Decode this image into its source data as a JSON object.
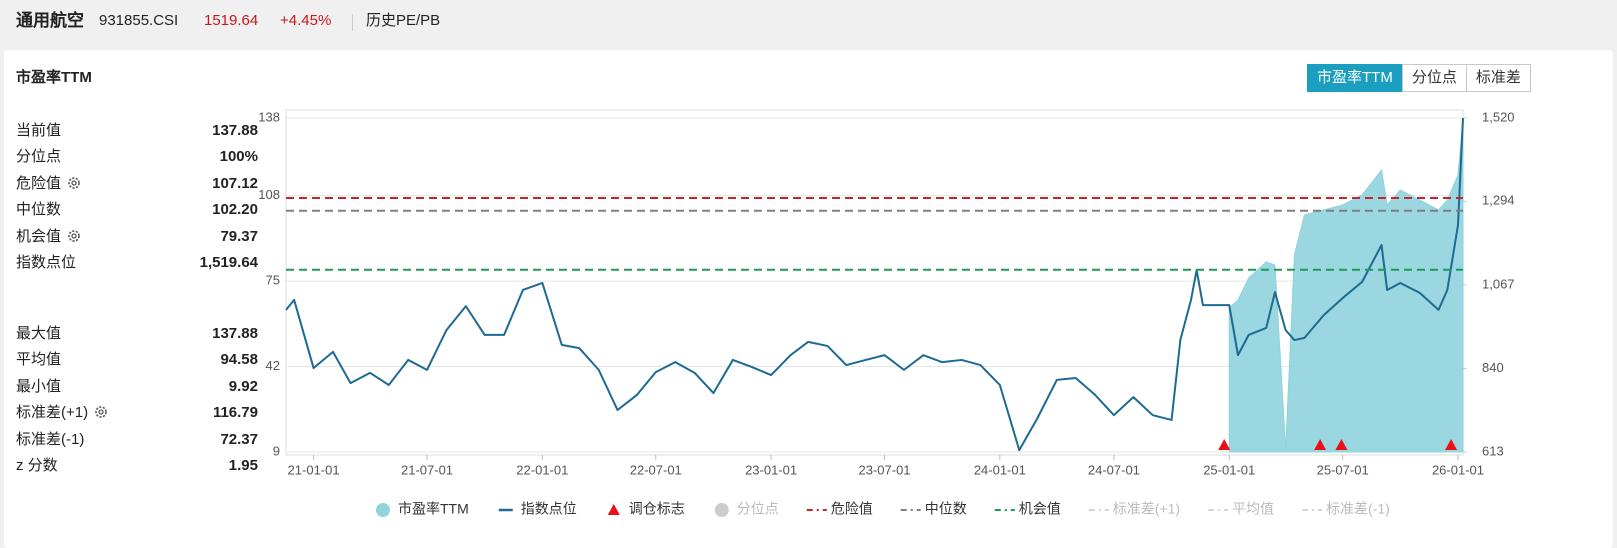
{
  "header": {
    "title": "通用航空",
    "code": "931855.CSI",
    "price": "1519.64",
    "change": "+4.45%",
    "tab": "历史PE/PB"
  },
  "panel": {
    "title": "市盈率TTM",
    "buttons": [
      {
        "label": "市盈率TTM",
        "active": true
      },
      {
        "label": "分位点",
        "active": false
      },
      {
        "label": "标准差",
        "active": false
      }
    ]
  },
  "stats": [
    [
      {
        "label": "当前值",
        "value": "137.88",
        "settings": false
      },
      {
        "label": "分位点",
        "value": "100%",
        "settings": false
      },
      {
        "label": "危险值",
        "value": "107.12",
        "settings": true
      },
      {
        "label": "中位数",
        "value": "102.20",
        "settings": false
      },
      {
        "label": "机会值",
        "value": "79.37",
        "settings": true
      },
      {
        "label": "指数点位",
        "value": "1,519.64",
        "settings": false
      }
    ],
    [
      {
        "label": "最大值",
        "value": "137.88",
        "settings": false
      },
      {
        "label": "平均值",
        "value": "94.58",
        "settings": false
      },
      {
        "label": "最小值",
        "value": "9.92",
        "settings": false
      },
      {
        "label": "标准差(+1)",
        "value": "116.79",
        "settings": true
      },
      {
        "label": "标准差(-1)",
        "value": "72.37",
        "settings": false
      },
      {
        "label": "z 分数",
        "value": "1.95",
        "settings": false
      }
    ]
  ],
  "chart_data": {
    "type": "line",
    "grid": true,
    "xlim": [
      "20-11-18",
      "26-01-09"
    ],
    "xticks": [
      "21-01-01",
      "21-07-01",
      "22-01-01",
      "22-07-01",
      "23-01-01",
      "23-07-01",
      "24-01-01",
      "24-07-01",
      "25-01-01",
      "25-07-01",
      "26-01-01"
    ],
    "ylim": [
      9,
      138
    ],
    "yticks": [
      9,
      42,
      75,
      108,
      138
    ],
    "y2lim": [
      613,
      1520
    ],
    "y2ticks": [
      613,
      840,
      {
        "value": 1067,
        "label": "1,067"
      },
      {
        "value": 1294,
        "label": "1,294"
      },
      {
        "value": 1520,
        "label": "1,520"
      }
    ],
    "x": [
      "20-11-18",
      "20-12-01",
      "21-01-01",
      "21-02-01",
      "21-03-01",
      "21-04-01",
      "21-05-01",
      "21-06-01",
      "21-07-01",
      "21-08-01",
      "21-09-01",
      "21-10-01",
      "21-11-01",
      "21-12-01",
      "22-01-01",
      "22-02-01",
      "22-03-01",
      "22-04-01",
      "22-05-01",
      "22-06-01",
      "22-07-01",
      "22-08-01",
      "22-09-01",
      "22-10-01",
      "22-11-01",
      "22-12-01",
      "23-01-01",
      "23-02-01",
      "23-03-01",
      "23-04-01",
      "23-05-01",
      "23-06-01",
      "23-07-01",
      "23-08-01",
      "23-09-01",
      "23-10-01",
      "23-11-01",
      "23-12-01",
      "24-01-01",
      "24-02-01",
      "24-03-01",
      "24-04-01",
      "24-05-01",
      "24-06-01",
      "24-07-01",
      "24-08-01",
      "24-09-01",
      "24-10-01",
      "24-10-15",
      "24-11-01",
      "24-11-10",
      "24-11-20",
      "24-12-01",
      "25-01-01",
      "25-01-15",
      "25-02-01",
      "25-03-01",
      "25-03-15",
      "25-04-01",
      "25-04-15",
      "25-05-01",
      "25-06-01",
      "25-07-01",
      "25-08-01",
      "25-09-01",
      "25-09-10",
      "25-10-01",
      "25-11-01",
      "25-12-01",
      "25-12-15",
      "26-01-01",
      "26-01-09"
    ],
    "series": [
      {
        "name": "市盈率TTM",
        "kind": "area",
        "axis": "y",
        "color": "#8fd3dd",
        "active": true,
        "values": [
          null,
          null,
          null,
          null,
          null,
          null,
          null,
          null,
          null,
          null,
          null,
          null,
          null,
          null,
          null,
          null,
          null,
          null,
          null,
          null,
          null,
          null,
          null,
          null,
          null,
          null,
          null,
          null,
          null,
          null,
          null,
          null,
          null,
          null,
          null,
          null,
          null,
          null,
          null,
          null,
          null,
          null,
          null,
          null,
          null,
          null,
          null,
          null,
          null,
          null,
          null,
          null,
          null,
          64.6,
          67.7,
          76.2,
          82.4,
          81.2,
          9.92,
          85.1,
          100.5,
          102.5,
          104.4,
          108.3,
          117.9,
          104.4,
          110.2,
          106.3,
          102.5,
          106.3,
          116,
          137.88
        ]
      },
      {
        "name": "指数点位",
        "kind": "line",
        "axis": "y2",
        "color": "#1d6a92",
        "active": true,
        "values": [
          999,
          1026,
          841,
          885,
          800,
          828,
          795,
          863,
          836,
          944,
          1009,
          931,
          931,
          1053,
          1072,
          904,
          895,
          836,
          727,
          768,
          830,
          857,
          828,
          773,
          863,
          844,
          822,
          876,
          912,
          901,
          849,
          863,
          876,
          836,
          876,
          857,
          863,
          849,
          795,
          618,
          705,
          809,
          814,
          768,
          713,
          762,
          713,
          700,
          917,
          1026,
          1107,
          1012,
          1012,
          1012,
          876,
          931,
          950,
          1047,
          944,
          917,
          923,
          985,
          1031,
          1075,
          1175,
          1053,
          1072,
          1045,
          999,
          1053,
          1229,
          1519.64
        ]
      },
      {
        "name": "调仓标志",
        "kind": "marker",
        "color": "#e8101a",
        "active": true,
        "x": [
          "24-12-24",
          "25-05-26",
          "25-06-29",
          "25-12-21"
        ]
      },
      {
        "name": "分位点",
        "kind": "point",
        "color": "#cccccc",
        "active": false
      },
      {
        "name": "危险值",
        "kind": "hline",
        "axis": "y",
        "color": "#c1272d",
        "active": true,
        "value": 107.12
      },
      {
        "name": "中位数",
        "kind": "hline",
        "axis": "y",
        "color": "#808080",
        "active": true,
        "value": 102.2
      },
      {
        "name": "机会值",
        "kind": "hline",
        "axis": "y",
        "color": "#1f9a55",
        "active": true,
        "value": 79.37
      },
      {
        "name": "标准差(+1)",
        "kind": "hline",
        "color": "#d6d6d6",
        "active": false
      },
      {
        "name": "平均值",
        "kind": "hline",
        "color": "#d6d6d6",
        "active": false
      },
      {
        "name": "标准差(-1)",
        "kind": "hline",
        "color": "#d6d6d6",
        "active": false
      }
    ]
  }
}
